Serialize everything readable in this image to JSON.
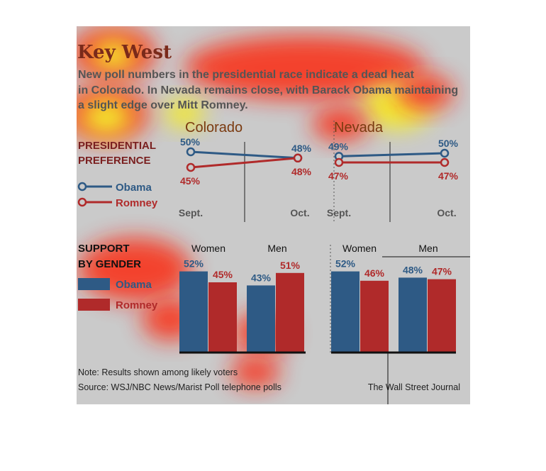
{
  "header": {
    "title": "Key West",
    "subtitle_lines": [
      "New poll numbers in the presidential race indicate a dead heat",
      "in Colorado. In Nevada remains close, with Barack Obama maintaining",
      "a slight edge over Mitt Romney."
    ]
  },
  "colors": {
    "obama": "#2e5a85",
    "romney": "#b02a2a",
    "background": "#cacaca",
    "label_text": "#111111",
    "heat_hot": "#fff200",
    "heat_warm": "#ff1a00"
  },
  "sections": {
    "preference": {
      "label_lines": [
        "PRESIDENTIAL",
        "PREFERENCE"
      ]
    },
    "gender": {
      "label_lines": [
        "SUPPORT",
        "BY GENDER"
      ]
    }
  },
  "legend": {
    "obama": "Obama",
    "romney": "Romney"
  },
  "chart_data": [
    {
      "type": "line",
      "title": "Colorado",
      "categories": [
        "Sept.",
        "Oct."
      ],
      "series": [
        {
          "name": "Obama",
          "values": [
            50,
            48
          ],
          "labels": [
            "50%",
            "48%"
          ]
        },
        {
          "name": "Romney",
          "values": [
            45,
            48
          ],
          "labels": [
            "45%",
            "48%"
          ]
        }
      ]
    },
    {
      "type": "line",
      "title": "Nevada",
      "categories": [
        "Sept.",
        "Oct."
      ],
      "series": [
        {
          "name": "Obama",
          "values": [
            49,
            50
          ],
          "labels": [
            "49%",
            "50%"
          ]
        },
        {
          "name": "Romney",
          "values": [
            47,
            47
          ],
          "labels": [
            "47%",
            "47%"
          ]
        }
      ]
    },
    {
      "type": "bar",
      "state": "Colorado",
      "categories": [
        "Women",
        "Men"
      ],
      "ylim": [
        0,
        60
      ],
      "series": [
        {
          "name": "Obama",
          "values": [
            52,
            43
          ],
          "labels": [
            "52%",
            "43%"
          ]
        },
        {
          "name": "Romney",
          "values": [
            45,
            51
          ],
          "labels": [
            "45%",
            "51%"
          ]
        }
      ]
    },
    {
      "type": "bar",
      "state": "Nevada",
      "categories": [
        "Women",
        "Men"
      ],
      "ylim": [
        0,
        60
      ],
      "series": [
        {
          "name": "Obama",
          "values": [
            52,
            48
          ],
          "labels": [
            "52%",
            "48%"
          ]
        },
        {
          "name": "Romney",
          "values": [
            46,
            47
          ],
          "labels": [
            "46%",
            "47%"
          ]
        }
      ]
    }
  ],
  "footer": {
    "note": "Note: Results shown among likely voters",
    "source": "Source: WSJ/NBC News/Marist Poll telephone polls",
    "credit": "The Wall Street Journal"
  }
}
